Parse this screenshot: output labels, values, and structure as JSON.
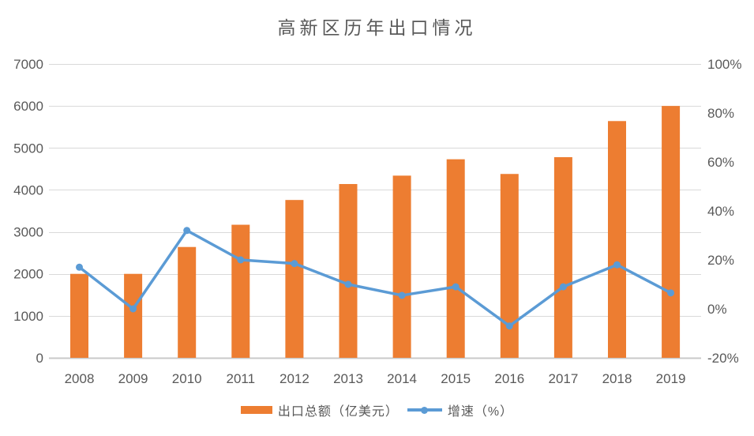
{
  "title": "高新区历年出口情况",
  "colors": {
    "bar": "#ED7D31",
    "line": "#5B9BD5",
    "text": "#595959",
    "gridline": "#D9D9D9",
    "axis_line": "#C9C9C9",
    "background": "#FFFFFF"
  },
  "chart_data": {
    "type": "bar",
    "subtype": "combo-bar-line-dual-axis",
    "title": "高新区历年出口情况",
    "categories": [
      "2008",
      "2009",
      "2010",
      "2011",
      "2012",
      "2013",
      "2014",
      "2015",
      "2016",
      "2017",
      "2018",
      "2019"
    ],
    "series": [
      {
        "name": "出口总额（亿美元）",
        "type": "bar",
        "axis": "left",
        "color": "#ED7D31",
        "values": [
          2000,
          2000,
          2640,
          3170,
          3760,
          4140,
          4340,
          4730,
          4380,
          4780,
          5640,
          6000
        ]
      },
      {
        "name": "增速（%）",
        "type": "line",
        "axis": "right",
        "color": "#5B9BD5",
        "values": [
          17,
          0,
          32,
          20,
          18.5,
          10,
          5.5,
          9,
          -7,
          9,
          18,
          6.5
        ]
      }
    ],
    "left_axis": {
      "min": 0,
      "max": 7000,
      "step": 1000,
      "ticks": [
        "0",
        "1000",
        "2000",
        "3000",
        "4000",
        "5000",
        "6000",
        "7000"
      ]
    },
    "right_axis": {
      "min": -20,
      "max": 100,
      "step": 20,
      "ticks": [
        "-20%",
        "0%",
        "20%",
        "40%",
        "60%",
        "80%",
        "100%"
      ]
    },
    "grid": true,
    "legend_position": "bottom"
  },
  "legend": {
    "items": [
      {
        "label": "出口总额（亿美元）",
        "swatch": "bar",
        "color": "#ED7D31"
      },
      {
        "label": "增速（%）",
        "swatch": "line",
        "color": "#5B9BD5"
      }
    ]
  }
}
